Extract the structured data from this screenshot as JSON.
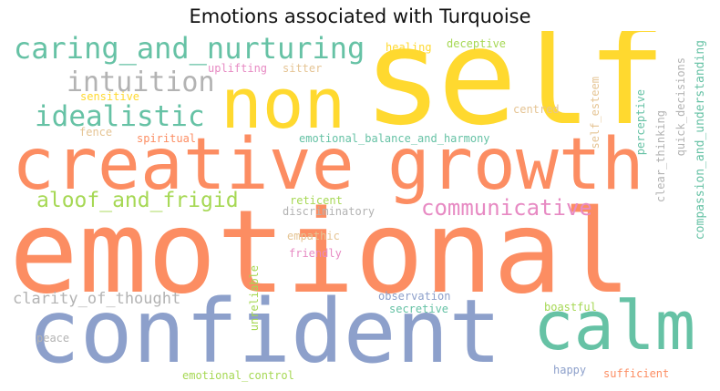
{
  "title": "Emotions associated with Turquoise",
  "palette": {
    "orange": "#fc8d62",
    "blue": "#8da0cb",
    "teal": "#66c2a5",
    "yellow": "#ffd92f",
    "green": "#a6d854",
    "pink": "#e78ac3",
    "gray": "#b3b3b3",
    "tan": "#e5c494"
  },
  "words": [
    {
      "text": "emotional",
      "color": "orange"
    },
    {
      "text": "self",
      "color": "yellow"
    },
    {
      "text": "confident",
      "color": "blue"
    },
    {
      "text": "creative",
      "color": "orange"
    },
    {
      "text": "growth",
      "color": "orange"
    },
    {
      "text": "non",
      "color": "yellow"
    },
    {
      "text": "calm",
      "color": "teal"
    },
    {
      "text": "caring_and_nurturing",
      "color": "teal"
    },
    {
      "text": "idealistic",
      "color": "teal"
    },
    {
      "text": "intuition",
      "color": "gray"
    },
    {
      "text": "communicative",
      "color": "pink"
    },
    {
      "text": "aloof_and_frigid",
      "color": "green"
    },
    {
      "text": "clarity_of_thought",
      "color": "gray"
    },
    {
      "text": "compassion_and_understanding",
      "color": "teal"
    },
    {
      "text": "emotional_balance_and_harmony",
      "color": "teal"
    },
    {
      "text": "quick_decisions",
      "color": "gray"
    },
    {
      "text": "clear_thinking",
      "color": "gray"
    },
    {
      "text": "perceptive",
      "color": "teal"
    },
    {
      "text": "self_esteem",
      "color": "tan"
    },
    {
      "text": "centred",
      "color": "tan"
    },
    {
      "text": "healing",
      "color": "yellow"
    },
    {
      "text": "deceptive",
      "color": "green"
    },
    {
      "text": "uplifting",
      "color": "pink"
    },
    {
      "text": "sitter",
      "color": "tan"
    },
    {
      "text": "sensitive",
      "color": "yellow"
    },
    {
      "text": "fence",
      "color": "tan"
    },
    {
      "text": "spiritual",
      "color": "orange"
    },
    {
      "text": "reticent",
      "color": "green"
    },
    {
      "text": "discriminatory",
      "color": "gray"
    },
    {
      "text": "empathic",
      "color": "tan"
    },
    {
      "text": "friendly",
      "color": "pink"
    },
    {
      "text": "unreliable",
      "color": "green"
    },
    {
      "text": "observation",
      "color": "blue"
    },
    {
      "text": "secretive",
      "color": "teal"
    },
    {
      "text": "boastful",
      "color": "green"
    },
    {
      "text": "peace",
      "color": "gray"
    },
    {
      "text": "happy",
      "color": "blue"
    },
    {
      "text": "sufficient",
      "color": "orange"
    },
    {
      "text": "emotional_control",
      "color": "green"
    }
  ]
}
